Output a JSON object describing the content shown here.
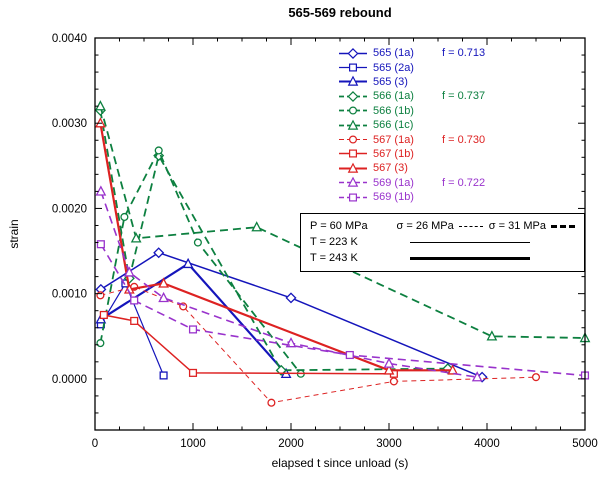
{
  "conditions": {
    "p": "P = 60 MPa",
    "s26": "σ = 26 MPa",
    "s31": "σ = 31 MPa",
    "t223": "T = 223 K",
    "t243": "T = 243 K"
  },
  "chart_data": {
    "type": "line",
    "title": "565-569 rebound",
    "xlabel": "elapsed t since unload (s)",
    "ylabel": "strain",
    "grid": false,
    "legend_position": "upper-right-inside",
    "axes": {
      "x": {
        "min": 0,
        "max": 5000,
        "majors": [
          0,
          1000,
          2000,
          3000,
          4000,
          5000
        ],
        "minor_step": 250
      },
      "y": {
        "min": -0.0006,
        "max": 0.004,
        "majors": [
          0,
          0.001,
          0.002,
          0.003,
          0.004
        ],
        "minor_step": 0.0002,
        "decimals": 4
      }
    },
    "series": [
      {
        "name": "565 (1a)",
        "color": "#1515bb",
        "dash": "",
        "width": 1.5,
        "marker": "diamond",
        "f_label": "f = 0.713",
        "points": [
          [
            60,
            0.00105
          ],
          [
            650,
            0.00148
          ],
          [
            2000,
            0.00095
          ],
          [
            3950,
            2e-05
          ]
        ]
      },
      {
        "name": "565 (2a)",
        "color": "#1515bb",
        "dash": "",
        "width": 1.2,
        "marker": "square",
        "points": [
          [
            60,
            0.00064
          ],
          [
            310,
            0.00112
          ],
          [
            700,
            4e-05
          ]
        ]
      },
      {
        "name": "565 (3)",
        "color": "#1515bb",
        "dash": "",
        "width": 2.2,
        "marker": "triangle",
        "points": [
          [
            60,
            0.0007
          ],
          [
            950,
            0.00135
          ],
          [
            1950,
            6e-05
          ]
        ]
      },
      {
        "name": "566 (1a)",
        "color": "#0d8040",
        "dash": "8,5",
        "width": 1.8,
        "marker": "diamond",
        "f_label": "f = 0.737",
        "points": [
          [
            55,
            0.00315
          ],
          [
            350,
            0.00118
          ],
          [
            650,
            0.00262
          ],
          [
            1900,
            0.0001
          ],
          [
            3600,
            0.00012
          ]
        ]
      },
      {
        "name": "566 (1b)",
        "color": "#0d8040",
        "dash": "8,5",
        "width": 1.8,
        "marker": "circle",
        "points": [
          [
            55,
            0.00042
          ],
          [
            300,
            0.0019
          ],
          [
            650,
            0.00268
          ],
          [
            1050,
            0.0016
          ],
          [
            2100,
            6e-05
          ]
        ]
      },
      {
        "name": "566 (1c)",
        "color": "#0d8040",
        "dash": "8,5",
        "width": 1.8,
        "marker": "triangle",
        "points": [
          [
            55,
            0.0032
          ],
          [
            420,
            0.00165
          ],
          [
            1650,
            0.00178
          ],
          [
            4050,
            0.0005
          ],
          [
            5000,
            0.00048
          ]
        ]
      },
      {
        "name": "567 (1a)",
        "color": "#dd2222",
        "dash": "5,4",
        "width": 1,
        "marker": "circle",
        "f_label": "f = 0.730",
        "points": [
          [
            55,
            0.00098
          ],
          [
            400,
            0.00108
          ],
          [
            900,
            0.00085
          ],
          [
            1800,
            -0.00028
          ],
          [
            3050,
            -3e-05
          ],
          [
            4500,
            2e-05
          ]
        ]
      },
      {
        "name": "567 (1b)",
        "color": "#dd2222",
        "dash": "",
        "width": 1.5,
        "marker": "square",
        "points": [
          [
            90,
            0.00075
          ],
          [
            400,
            0.00068
          ],
          [
            1000,
            7e-05
          ],
          [
            3050,
            6e-05
          ]
        ]
      },
      {
        "name": "567 (3)",
        "color": "#dd2222",
        "dash": "",
        "width": 2.2,
        "marker": "triangle",
        "points": [
          [
            55,
            0.003
          ],
          [
            350,
            0.00105
          ],
          [
            700,
            0.00112
          ],
          [
            3000,
            0.0001
          ],
          [
            3650,
            0.0001
          ]
        ]
      },
      {
        "name": "569 (1a)",
        "color": "#9933cc",
        "dash": "8,5",
        "width": 1.6,
        "marker": "triangle",
        "f_label": "f = 0.722",
        "points": [
          [
            60,
            0.0022
          ],
          [
            350,
            0.00125
          ],
          [
            700,
            0.00095
          ],
          [
            2000,
            0.00042
          ],
          [
            3000,
            0.00018
          ],
          [
            3900,
            2e-05
          ]
        ]
      },
      {
        "name": "569 (1b)",
        "color": "#9933cc",
        "dash": "8,5",
        "width": 1.6,
        "marker": "square",
        "points": [
          [
            60,
            0.00158
          ],
          [
            400,
            0.00092
          ],
          [
            1000,
            0.00058
          ],
          [
            2600,
            0.00028
          ],
          [
            5000,
            4e-05
          ]
        ]
      }
    ]
  }
}
